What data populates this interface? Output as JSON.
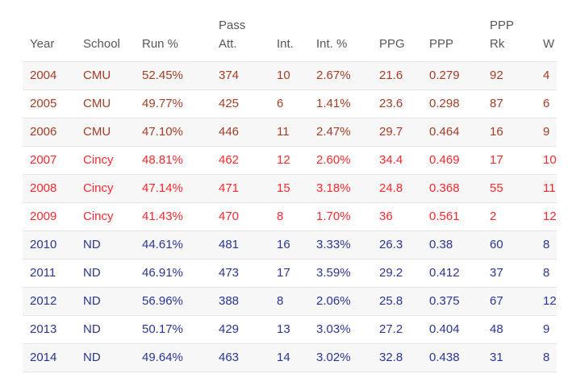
{
  "chart_data": {
    "type": "table",
    "columns": [
      "Year",
      "School",
      "Run %",
      "Pass\nAtt.",
      "Int.",
      "Int. %",
      "PPG",
      "PPP",
      "PPP\nRk",
      "W"
    ],
    "rows": [
      [
        "2004",
        "CMU",
        "52.45%",
        "374",
        "10",
        "2.67%",
        "21.6",
        "0.279",
        "92",
        "4"
      ],
      [
        "2005",
        "CMU",
        "49.77%",
        "425",
        "6",
        "1.41%",
        "23.6",
        "0.298",
        "87",
        "6"
      ],
      [
        "2006",
        "CMU",
        "47.10%",
        "446",
        "11",
        "2.47%",
        "29.7",
        "0.464",
        "16",
        "9"
      ],
      [
        "2007",
        "Cincy",
        "48.81%",
        "462",
        "12",
        "2.60%",
        "34.4",
        "0.469",
        "17",
        "10"
      ],
      [
        "2008",
        "Cincy",
        "47.14%",
        "471",
        "15",
        "3.18%",
        "24.8",
        "0.368",
        "55",
        "11"
      ],
      [
        "2009",
        "Cincy",
        "41.43%",
        "470",
        "8",
        "1.70%",
        "36",
        "0.561",
        "2",
        "12"
      ],
      [
        "2010",
        "ND",
        "44.61%",
        "481",
        "16",
        "3.33%",
        "26.3",
        "0.38",
        "60",
        "8"
      ],
      [
        "2011",
        "ND",
        "46.91%",
        "473",
        "17",
        "3.59%",
        "29.2",
        "0.412",
        "37",
        "8"
      ],
      [
        "2012",
        "ND",
        "56.96%",
        "388",
        "8",
        "2.06%",
        "25.8",
        "0.375",
        "67",
        "12"
      ],
      [
        "2013",
        "ND",
        "50.17%",
        "429",
        "13",
        "3.03%",
        "27.2",
        "0.404",
        "48",
        "9"
      ],
      [
        "2014",
        "ND",
        "49.64%",
        "463",
        "14",
        "3.02%",
        "32.8",
        "0.438",
        "31",
        "8"
      ]
    ],
    "row_teams": [
      "CMU",
      "CMU",
      "CMU",
      "Cincy",
      "Cincy",
      "Cincy",
      "ND",
      "ND",
      "ND",
      "ND",
      "ND"
    ],
    "team_colors": {
      "CMU": "#a03e26",
      "Cincy": "#f7282f",
      "ND": "#2a3590"
    },
    "style": {
      "header_text": "#55565a",
      "row_alt_bg": "#f7f7f7",
      "border": "#e4e4e4",
      "page_bg": "#ffffff"
    },
    "layout_hints": {
      "striping": "odd rows shaded starting with first data row",
      "alignment": "left"
    }
  }
}
